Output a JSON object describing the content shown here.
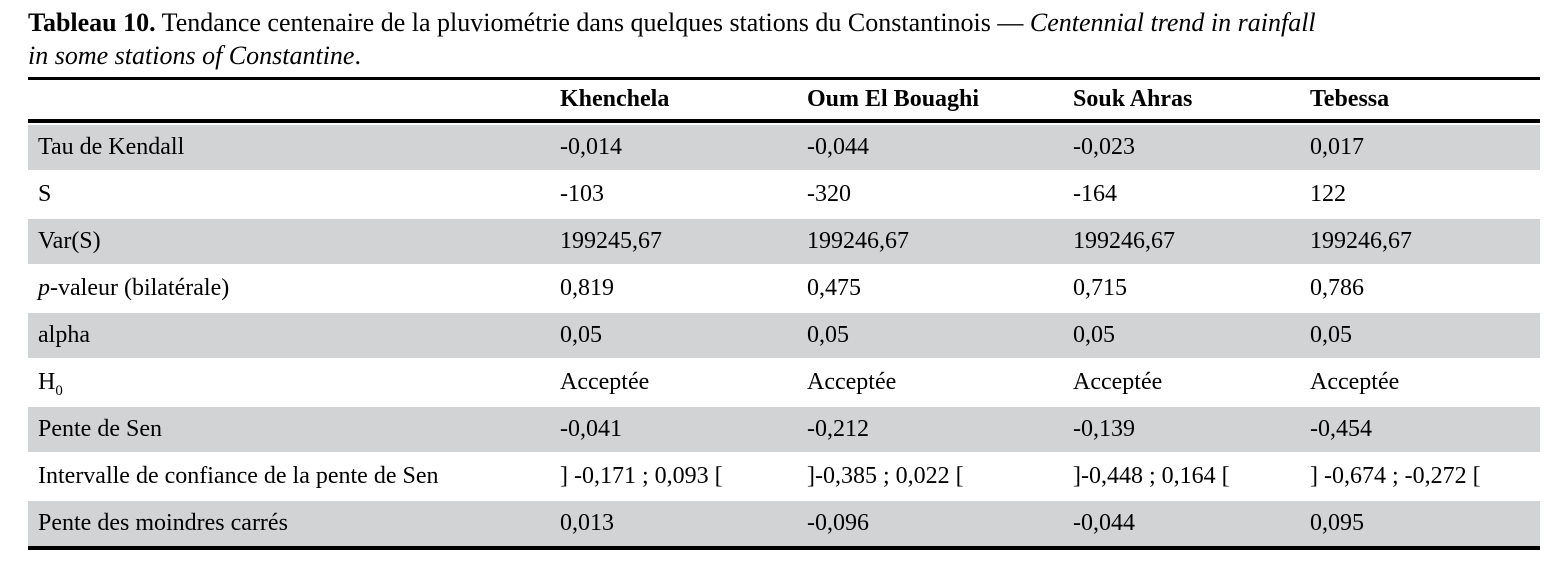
{
  "caption": {
    "parts": [
      {
        "text": "Tableau 10.",
        "bold": true
      },
      {
        "text": " Tendance centenaire de la pluviométrie dans quelques stations du Constantinois — "
      },
      {
        "text": "Centennial trend in rainfall",
        "italic": true
      },
      {
        "br": true
      },
      {
        "text": "in some stations of Constantine",
        "italic": true
      },
      {
        "text": "."
      }
    ]
  },
  "table": {
    "columns": [
      "Khenchela",
      "Oum El Bouaghi",
      "Souk Ahras",
      "Tebessa"
    ],
    "rows": [
      {
        "label_parts": [
          {
            "text": "Tau de Kendall"
          }
        ],
        "values": [
          "-0,014",
          "-0,044",
          "-0,023",
          "0,017"
        ]
      },
      {
        "label_parts": [
          {
            "text": "S"
          }
        ],
        "values": [
          "-103",
          "-320",
          "-164",
          "122"
        ]
      },
      {
        "label_parts": [
          {
            "text": "Var(S)"
          }
        ],
        "values": [
          "199245,67",
          "199246,67",
          "199246,67",
          "199246,67"
        ]
      },
      {
        "label_parts": [
          {
            "text": "p",
            "italic": true
          },
          {
            "text": "-valeur (bilatérale)"
          }
        ],
        "values": [
          "0,819",
          "0,475",
          "0,715",
          "0,786"
        ]
      },
      {
        "label_parts": [
          {
            "text": "alpha"
          }
        ],
        "values": [
          "0,05",
          "0,05",
          "0,05",
          "0,05"
        ]
      },
      {
        "label_parts": [
          {
            "text": "H"
          },
          {
            "text": "0",
            "sub": true
          }
        ],
        "values": [
          "Acceptée",
          "Acceptée",
          "Acceptée",
          "Acceptée"
        ]
      },
      {
        "label_parts": [
          {
            "text": "Pente de Sen"
          }
        ],
        "values": [
          "-0,041",
          "-0,212",
          "-0,139",
          "-0,454"
        ]
      },
      {
        "label_parts": [
          {
            "text": "Intervalle de confiance de la pente de Sen"
          }
        ],
        "values": [
          "] -0,171 ; 0,093 [",
          "]-0,385 ; 0,022 [",
          "]-0,448 ; 0,164 [",
          "] -0,674 ; -0,272 ["
        ]
      },
      {
        "label_parts": [
          {
            "text": "Pente des moindres carrés"
          }
        ],
        "values": [
          "0,013",
          "-0,096",
          "-0,044",
          "0,095"
        ]
      }
    ]
  },
  "colors": {
    "row_shade": "#d2d3d4",
    "rule": "#000000",
    "text": "#000000",
    "background": "#ffffff"
  },
  "chart_data": {
    "type": "table",
    "title": "Tableau 10. Tendance centenaire de la pluviométrie dans quelques stations du Constantinois — Centennial trend in rainfall in some stations of Constantine.",
    "columns": [
      "",
      "Khenchela",
      "Oum El Bouaghi",
      "Souk Ahras",
      "Tebessa"
    ],
    "rows": [
      [
        "Tau de Kendall",
        "-0,014",
        "-0,044",
        "-0,023",
        "0,017"
      ],
      [
        "S",
        "-103",
        "-320",
        "-164",
        "122"
      ],
      [
        "Var(S)",
        "199245,67",
        "199246,67",
        "199246,67",
        "199246,67"
      ],
      [
        "p-valeur (bilatérale)",
        "0,819",
        "0,475",
        "0,715",
        "0,786"
      ],
      [
        "alpha",
        "0,05",
        "0,05",
        "0,05",
        "0,05"
      ],
      [
        "H0",
        "Acceptée",
        "Acceptée",
        "Acceptée",
        "Acceptée"
      ],
      [
        "Pente de Sen",
        "-0,041",
        "-0,212",
        "-0,139",
        "-0,454"
      ],
      [
        "Intervalle de confiance de la pente de Sen",
        "] -0,171 ; 0,093 [",
        "]-0,385 ; 0,022 [",
        "]-0,448 ; 0,164 [",
        "] -0,674 ; -0,272 ["
      ],
      [
        "Pente des moindres carrés",
        "0,013",
        "-0,096",
        "-0,044",
        "0,095"
      ]
    ],
    "layout": {
      "shaded_rows": "odd rows (1st, 3rd, 5th, 7th, 9th) light gray",
      "rules": "black horizontal rules above header, below header, below last row",
      "legend": "none",
      "grid": "off"
    }
  }
}
